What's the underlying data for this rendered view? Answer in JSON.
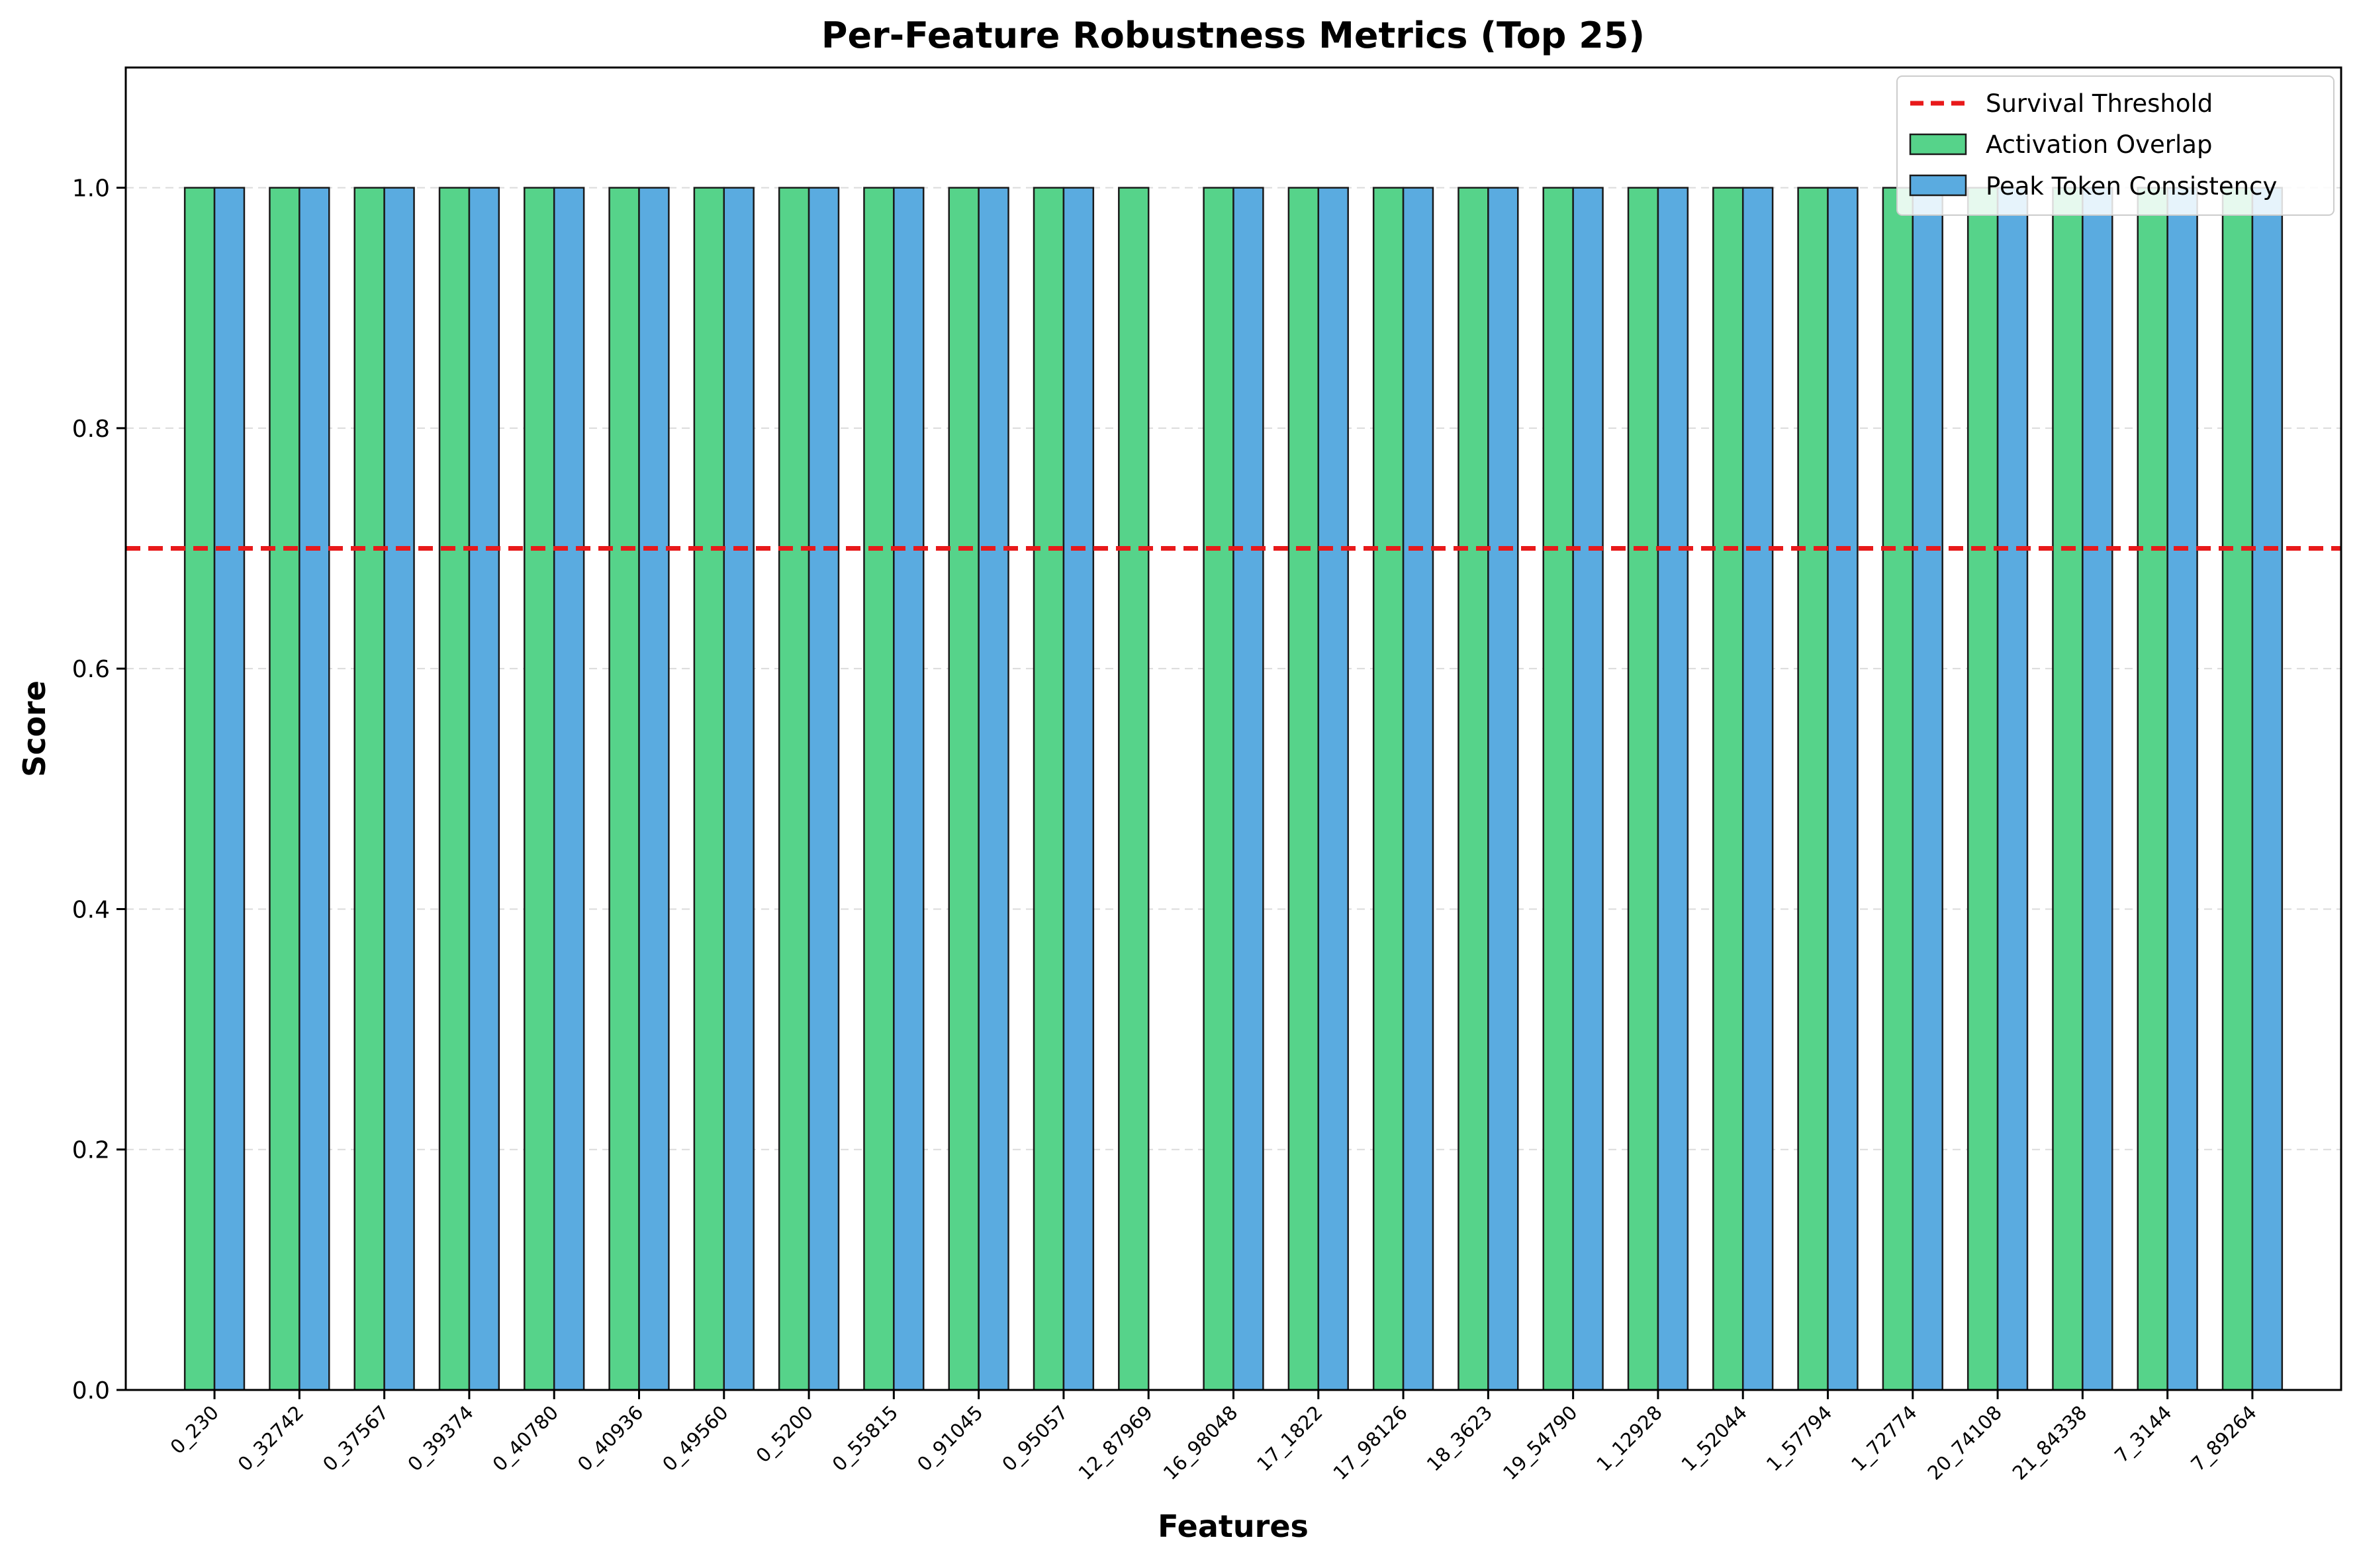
{
  "chart_data": {
    "type": "bar",
    "title": "Per-Feature Robustness Metrics (Top 25)",
    "xlabel": "Features",
    "ylabel": "Score",
    "ylim": [
      0,
      1.1
    ],
    "yticks": [
      "0.0",
      "0.2",
      "0.4",
      "0.6",
      "0.8",
      "1.0"
    ],
    "grid": "horizontal dashed",
    "legend_position": "top-right",
    "threshold": {
      "name": "Survival Threshold",
      "value": 0.7,
      "color": "#e8191a",
      "style": "dashed"
    },
    "categories": [
      "0_230",
      "0_32742",
      "0_37567",
      "0_39374",
      "0_40780",
      "0_40936",
      "0_49560",
      "0_5200",
      "0_55815",
      "0_91045",
      "0_95057",
      "12_87969",
      "16_98048",
      "17_1822",
      "17_98126",
      "18_3623",
      "19_54790",
      "1_12928",
      "1_52044",
      "1_57794",
      "1_72774",
      "20_74108",
      "21_84338",
      "7_3144",
      "7_89264"
    ],
    "series": [
      {
        "name": "Activation Overlap",
        "color": "#56d38a",
        "values": [
          1,
          1,
          1,
          1,
          1,
          1,
          1,
          1,
          1,
          1,
          1,
          1,
          1,
          1,
          1,
          1,
          1,
          1,
          1,
          1,
          1,
          1,
          1,
          1,
          1
        ]
      },
      {
        "name": "Peak Token Consistency",
        "color": "#5aabe0",
        "values": [
          1,
          1,
          1,
          1,
          1,
          1,
          1,
          1,
          1,
          1,
          1,
          0,
          1,
          1,
          1,
          1,
          1,
          1,
          1,
          1,
          1,
          1,
          1,
          1,
          1
        ]
      }
    ]
  }
}
